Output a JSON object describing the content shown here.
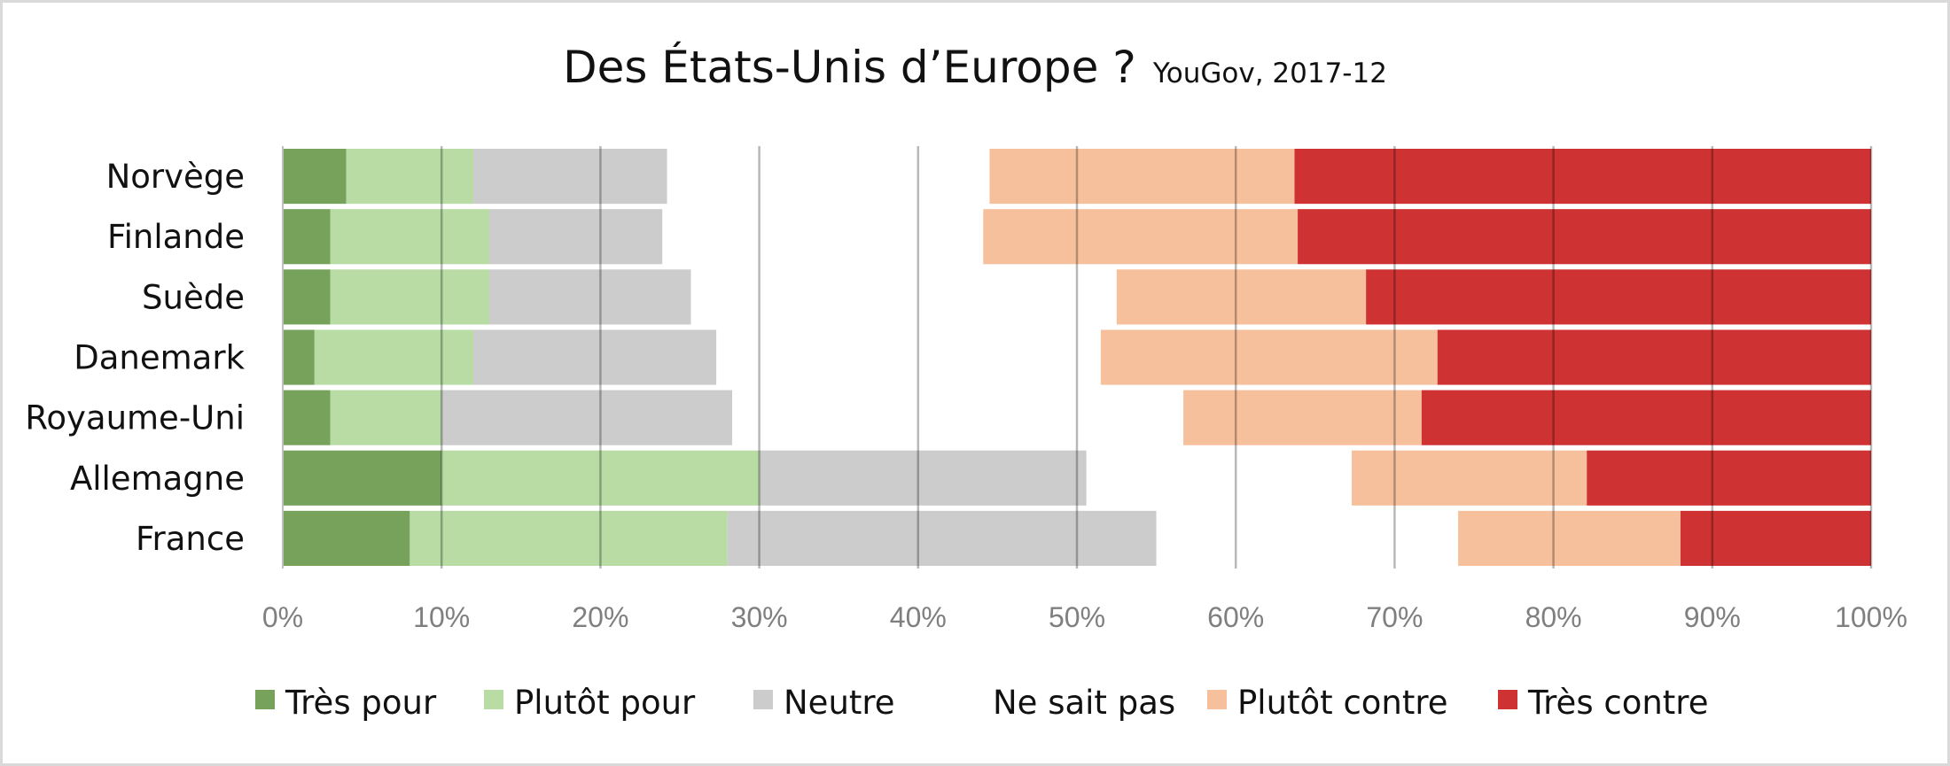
{
  "chart_data": {
    "type": "bar",
    "orientation": "horizontal",
    "stacked": "100%",
    "title": "Des États-Unis d’Europe ?",
    "subtitle": "YouGov, 2017-12",
    "categories": [
      "Norvège",
      "Finlande",
      "Suède",
      "Danemark",
      "Royaume-Uni",
      "Allemagne",
      "France"
    ],
    "series": [
      {
        "name": "Très pour",
        "color": "#76a25c",
        "values": [
          4,
          3,
          3,
          2,
          3,
          10,
          8
        ]
      },
      {
        "name": "Plutôt pour",
        "color": "#b8dca4",
        "values": [
          8,
          10,
          10,
          10,
          7,
          20,
          20
        ]
      },
      {
        "name": "Neutre",
        "color": "#cccccc",
        "values": [
          12.2,
          10.9,
          12.7,
          15.3,
          18.3,
          20.6,
          27
        ]
      },
      {
        "name": "Ne sait pas",
        "color": "#ffffff",
        "values": [
          20.3,
          20.2,
          26.8,
          24.2,
          28.4,
          16.7,
          19
        ]
      },
      {
        "name": "Plutôt contre",
        "color": "#f7c09c",
        "values": [
          19.2,
          19.8,
          15.7,
          21.2,
          15,
          14.8,
          14
        ]
      },
      {
        "name": "Très contre",
        "color": "#cf3232",
        "values": [
          36.3,
          36.1,
          31.8,
          27.3,
          28.3,
          17.9,
          12
        ]
      }
    ],
    "xlim": [
      0,
      100
    ],
    "xticks": [
      "0%",
      "10%",
      "20%",
      "30%",
      "40%",
      "50%",
      "60%",
      "70%",
      "80%",
      "90%",
      "100%"
    ],
    "grid": "vertical",
    "legend": "bottom"
  }
}
